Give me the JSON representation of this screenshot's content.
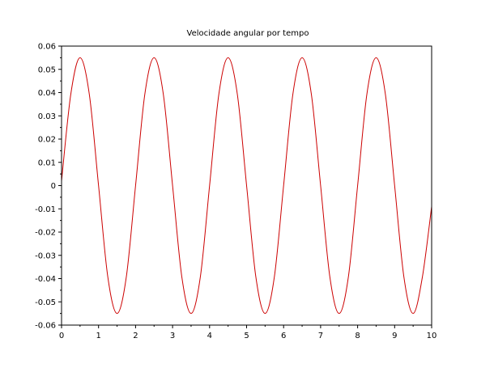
{
  "chart_data": {
    "type": "line",
    "title": "Velocidade angular por tempo",
    "xlabel": "",
    "ylabel": "",
    "xlim": [
      0,
      10
    ],
    "ylim": [
      -0.06,
      0.06
    ],
    "x_ticks": [
      0,
      1,
      2,
      3,
      4,
      5,
      6,
      7,
      8,
      9,
      10
    ],
    "x_tick_labels": [
      "0",
      "1",
      "2",
      "3",
      "4",
      "5",
      "6",
      "7",
      "8",
      "9",
      "10"
    ],
    "y_ticks": [
      -0.06,
      -0.05,
      -0.04,
      -0.03,
      -0.02,
      -0.01,
      0,
      0.01,
      0.02,
      0.03,
      0.04,
      0.05,
      0.06
    ],
    "y_tick_labels": [
      "-0.06",
      "-0.05",
      "-0.04",
      "-0.03",
      "-0.02",
      "-0.01",
      "0",
      "0.01",
      "0.02",
      "0.03",
      "0.04",
      "0.05",
      "0.06"
    ],
    "grid": false,
    "legend": "none",
    "series": [
      {
        "color": "#cc0000",
        "x": [
          0,
          0.25,
          0.5,
          0.75,
          1,
          1.25,
          1.5,
          1.75,
          2,
          2.25,
          2.5,
          2.75,
          3,
          3.25,
          3.5,
          3.75,
          4,
          4.25,
          4.5,
          4.75,
          5,
          5.25,
          5.5,
          5.75,
          6,
          6.25,
          6.5,
          6.75,
          7,
          7.25,
          7.5,
          7.75,
          8,
          8.25,
          8.5,
          8.75,
          9,
          9.25,
          9.5,
          9.75,
          10
        ],
        "y": [
          0.002,
          0.0393,
          0.055,
          0.0393,
          0,
          -0.0393,
          -0.055,
          -0.0393,
          0,
          0.0393,
          0.055,
          0.0393,
          0,
          -0.0393,
          -0.055,
          -0.0393,
          0,
          0.0393,
          0.055,
          0.0393,
          0,
          -0.0393,
          -0.055,
          -0.0393,
          0,
          0.0393,
          0.055,
          0.0393,
          0,
          -0.0393,
          -0.055,
          -0.0393,
          0,
          0.0393,
          0.055,
          0.0393,
          0,
          -0.0393,
          -0.055,
          -0.0393,
          -0.009
        ]
      }
    ]
  }
}
